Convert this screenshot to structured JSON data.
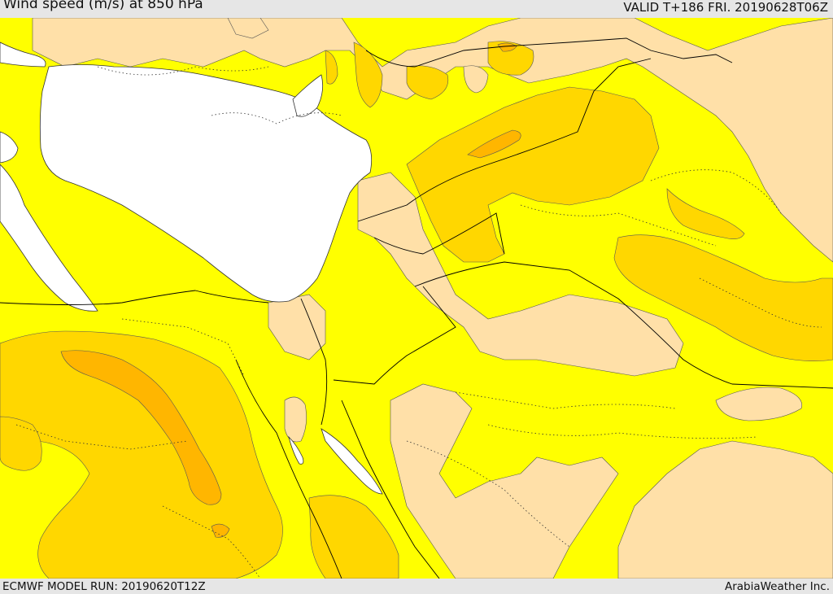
{
  "header": {
    "title": "Wind speed (m/s) at 850 hPa",
    "valid": "VALID T+186 FRI. 20190628T06Z"
  },
  "footer": {
    "model_run": "ECMWF MODEL RUN: 20190620T12Z",
    "brand": "ArabiaWeather Inc."
  },
  "colors": {
    "sea": "#ffffff",
    "band_0": "#ffe0a8",
    "band_1": "#ffff00",
    "band_2": "#ffd700",
    "band_3": "#ffb600",
    "coast": "#333333",
    "border": "#000000"
  }
}
